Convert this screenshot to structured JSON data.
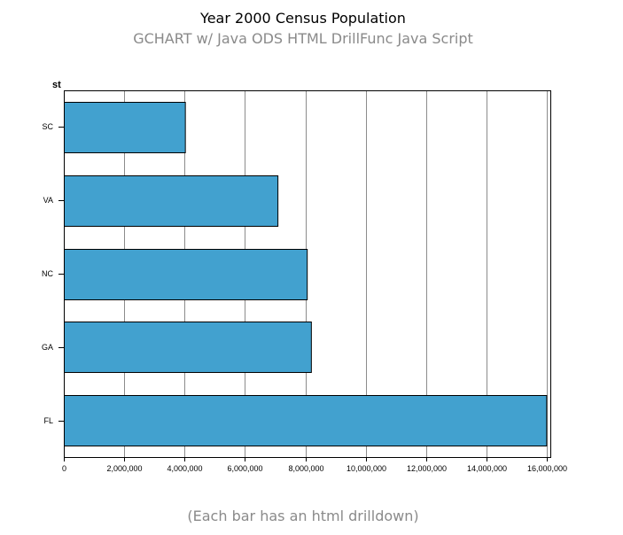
{
  "chart_data": {
    "type": "bar",
    "orientation": "horizontal",
    "title": "Year 2000 Census Population",
    "subtitle": "GCHART w/ Java ODS HTML DrillFunc Java Script",
    "footnote": "(Each bar has an html drilldown)",
    "ylabel": "st",
    "xlabel": "",
    "categories": [
      "SC",
      "VA",
      "NC",
      "GA",
      "FL"
    ],
    "values": [
      4012012,
      7078515,
      8049313,
      8186453,
      15982378
    ],
    "xlim": [
      0,
      16000000
    ],
    "xticks": [
      0,
      2000000,
      4000000,
      6000000,
      8000000,
      10000000,
      12000000,
      14000000,
      16000000
    ],
    "xtick_labels": [
      "0",
      "2,000,000",
      "4,000,000",
      "6,000,000",
      "8,000,000",
      "10,000,000",
      "12,000,000",
      "14,000,000",
      "16,000,000"
    ],
    "grid": true,
    "legend": "none",
    "bar_color": "#42a1cf"
  }
}
